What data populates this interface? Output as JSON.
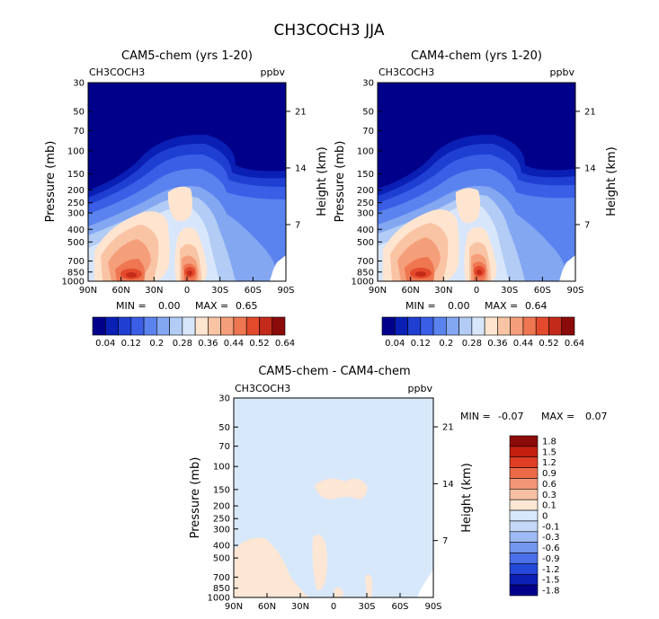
{
  "title": "CH3COCH3 JJA",
  "colors": {
    "levels12": [
      "#00008b",
      "#0a1fb4",
      "#1f3fd2",
      "#3a5ee6",
      "#5b83ef",
      "#84a7f2",
      "#b2ccf5",
      "#d8e6fb",
      "#ffe5d0",
      "#f9c4a4",
      "#f59e7a",
      "#ee7651",
      "#e34a2c",
      "#c42a19",
      "#8b0a0a"
    ],
    "diff": [
      "#00008b",
      "#0a1fb4",
      "#2448d9",
      "#4a6fe8",
      "#7397ef",
      "#9cbaf3",
      "#c4d8f8",
      "#d8e8fb",
      "#fde6d4",
      "#f8c0a2",
      "#f39577",
      "#ec6a48",
      "#e03e24",
      "#c4200f",
      "#8b0a0a"
    ]
  },
  "chart_data": [
    {
      "type": "heatmap",
      "title": "CAM5-chem (yrs 1-20)",
      "species_label": "CH3COCH3",
      "units": "ppbv",
      "ylabel": "Pressure (mb)",
      "ylabel_right": "Height (km)",
      "x_ticks": [
        "90N",
        "60N",
        "30N",
        "0",
        "30S",
        "60S",
        "90S"
      ],
      "y_ticks": [
        "30",
        "50",
        "70",
        "100",
        "150",
        "200",
        "250",
        "300",
        "400",
        "500",
        "700",
        "850",
        "1000"
      ],
      "right_ticks": [
        "21",
        "14",
        "7"
      ],
      "min_label": "MIN =",
      "min_value": "0.00",
      "max_label": "MAX =",
      "max_value": "0.65",
      "colorbar_labels": [
        "0.04",
        "0.12",
        "0.2",
        "0.28",
        "0.36",
        "0.44",
        "0.52",
        "0.64"
      ]
    },
    {
      "type": "heatmap",
      "title": "CAM4-chem (yrs 1-20)",
      "species_label": "CH3COCH3",
      "units": "ppbv",
      "ylabel": "Pressure (mb)",
      "ylabel_right": "Height (km)",
      "x_ticks": [
        "90N",
        "60N",
        "30N",
        "0",
        "30S",
        "60S",
        "90S"
      ],
      "y_ticks": [
        "30",
        "50",
        "70",
        "100",
        "150",
        "200",
        "250",
        "300",
        "400",
        "500",
        "700",
        "850",
        "1000"
      ],
      "right_ticks": [
        "21",
        "14",
        "7"
      ],
      "min_label": "MIN =",
      "min_value": "0.00",
      "max_label": "MAX =",
      "max_value": "0.64",
      "colorbar_labels": [
        "0.04",
        "0.12",
        "0.2",
        "0.28",
        "0.36",
        "0.44",
        "0.52",
        "0.64"
      ]
    },
    {
      "type": "heatmap",
      "title": "CAM5-chem - CAM4-chem",
      "species_label": "CH3COCH3",
      "units": "ppbv",
      "ylabel": "Pressure (mb)",
      "ylabel_right": "Height (km)",
      "x_ticks": [
        "90N",
        "60N",
        "30N",
        "0",
        "30S",
        "60S",
        "90S"
      ],
      "y_ticks": [
        "30",
        "50",
        "70",
        "100",
        "150",
        "200",
        "250",
        "300",
        "400",
        "500",
        "700",
        "850",
        "1000"
      ],
      "right_ticks": [
        "21",
        "14",
        "7"
      ],
      "min_label": "MIN =",
      "min_value": "-0.07",
      "max_label": "MAX =",
      "max_value": "0.07",
      "colorbar_labels": [
        "1.8",
        "1.5",
        "1.2",
        "0.9",
        "0.6",
        "0.3",
        "0.1",
        "0",
        "-0.1",
        "-0.3",
        "-0.6",
        "-0.9",
        "-1.2",
        "-1.5",
        "-1.8"
      ]
    }
  ]
}
